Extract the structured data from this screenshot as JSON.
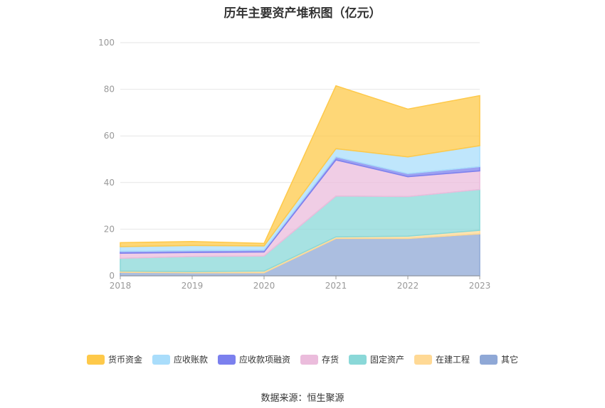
{
  "title": "历年主要资产堆积图（亿元）",
  "source": "数据来源：恒生聚源",
  "chart_data": {
    "type": "area",
    "stacked": true,
    "title": "历年主要资产堆积图（亿元）",
    "x": [
      "2018",
      "2019",
      "2020",
      "2021",
      "2022",
      "2023"
    ],
    "ylim": [
      0,
      100
    ],
    "yticks": [
      0,
      20,
      40,
      60,
      80,
      100
    ],
    "grid": true,
    "legend_position": "bottom",
    "series": [
      {
        "name": "其它",
        "color": "#8fa8d6",
        "values": [
          1.5,
          1.3,
          1.3,
          16.0,
          16.0,
          18.0
        ]
      },
      {
        "name": "在建工程",
        "color": "#ffd995",
        "values": [
          0.5,
          0.5,
          0.7,
          0.7,
          1.0,
          1.5
        ]
      },
      {
        "name": "固定资产",
        "color": "#8ad8d8",
        "values": [
          5.5,
          6.5,
          6.5,
          17.5,
          17.0,
          17.5
        ]
      },
      {
        "name": "存货",
        "color": "#ebbcdc",
        "values": [
          2.2,
          1.7,
          1.7,
          15.5,
          8.5,
          8.0
        ]
      },
      {
        "name": "应收款项融资",
        "color": "#7b80ee",
        "values": [
          0.8,
          0.8,
          0.8,
          1.3,
          1.3,
          1.8
        ]
      },
      {
        "name": "应收账款",
        "color": "#a9ddfb",
        "values": [
          2.0,
          2.2,
          1.8,
          3.5,
          7.2,
          9.0
        ]
      },
      {
        "name": "货币资金",
        "color": "#fec94a",
        "values": [
          1.7,
          1.7,
          1.1,
          27.0,
          20.5,
          21.5
        ]
      }
    ],
    "legend_order": [
      "货币资金",
      "应收账款",
      "应收款项融资",
      "存货",
      "固定资产",
      "在建工程",
      "其它"
    ]
  }
}
